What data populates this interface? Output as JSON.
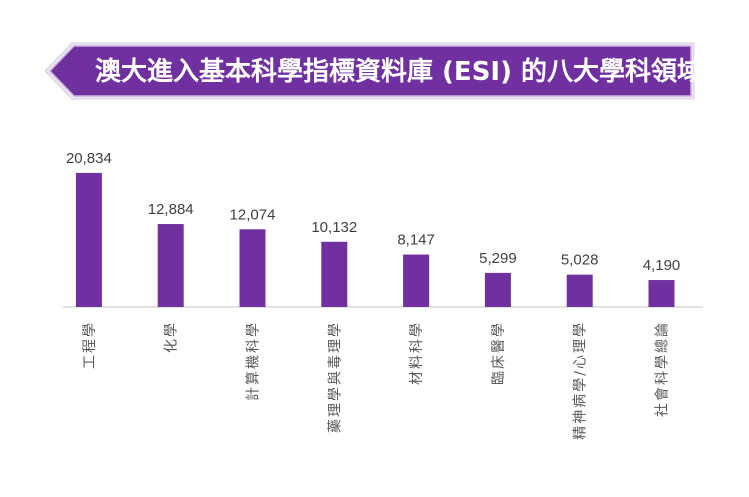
{
  "chart_data": {
    "type": "bar",
    "title": "澳大進入基本科學指標資料庫 (ESI) 的八大學科領域",
    "categories": [
      "工程學",
      "化學",
      "計算機科學",
      "藥理學與毒理學",
      "材料科學",
      "臨床醫學",
      "精神病學/心理學",
      "社會科學總論"
    ],
    "values": [
      20834,
      12884,
      12074,
      10132,
      8147,
      5299,
      5028,
      4190
    ],
    "data_labels": [
      "20,834",
      "12,884",
      "12,074",
      "10,132",
      "8,147",
      "5,299",
      "5,028",
      "4,190"
    ],
    "xlabel": "",
    "ylabel": "",
    "ylim": [
      0,
      22000
    ],
    "grid": false,
    "legend": "none",
    "bar_color": "#7030A0",
    "axis_color": "#D9D9D9"
  },
  "banner": {
    "fill": "#7030A0",
    "border": "#C9B3DD"
  }
}
